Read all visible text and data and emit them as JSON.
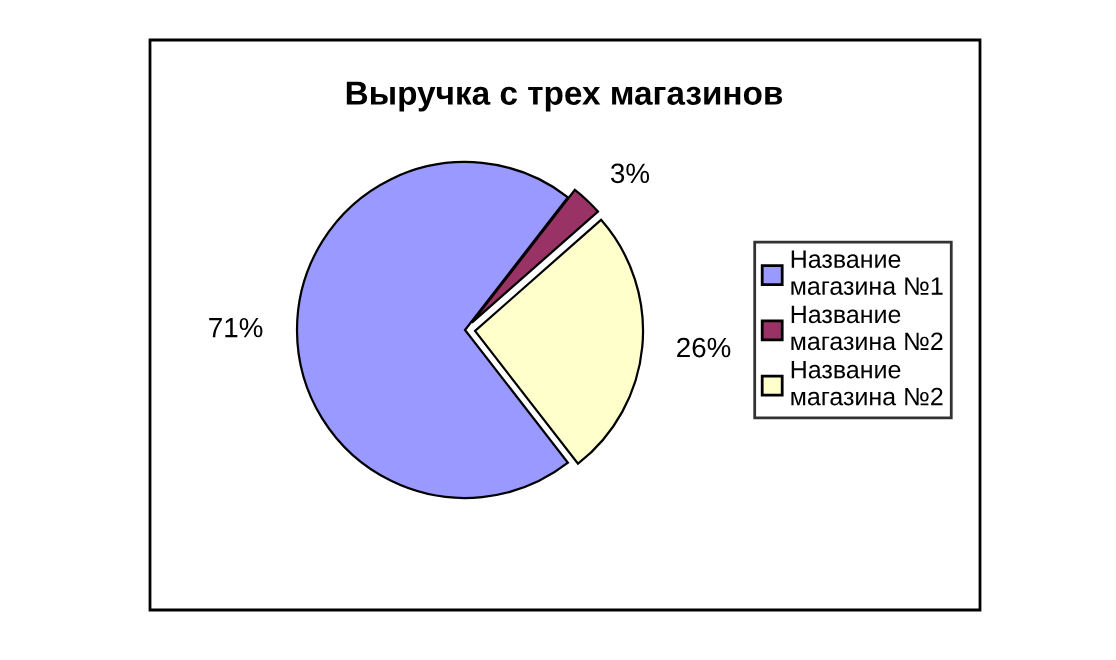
{
  "chart_data": {
    "type": "pie",
    "title": "Выручка с трех магазинов",
    "categories": [
      "Название магазина №1",
      "Название магазина №2",
      "Название магазина №2"
    ],
    "values": [
      71,
      3,
      26
    ],
    "colors": [
      "#9999ff",
      "#993366",
      "#ffffcc"
    ],
    "value_labels": [
      "71%",
      "3%",
      "26%"
    ],
    "legend": "right"
  }
}
